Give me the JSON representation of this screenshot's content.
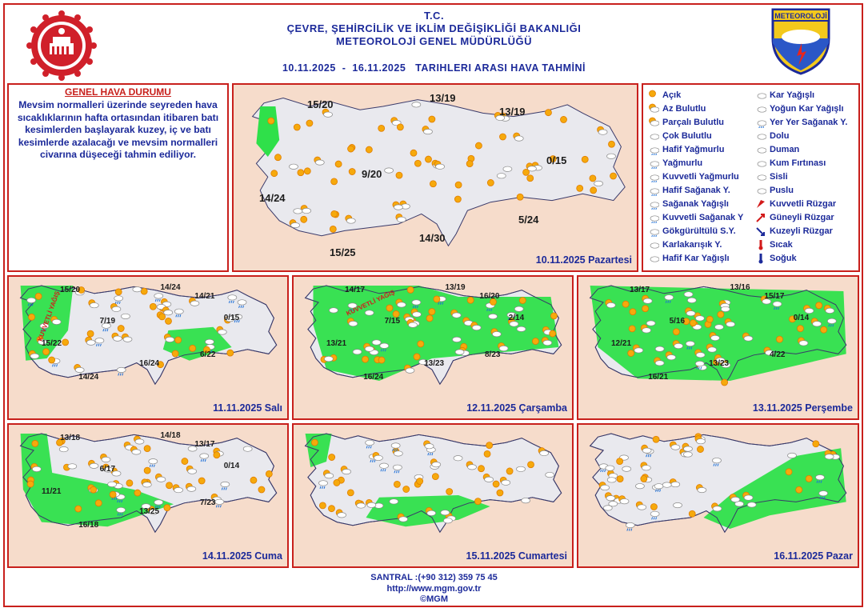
{
  "header": {
    "line1": "T.C.",
    "line2": "ÇEVRE, ŞEHİRCİLİK VE İKLİM DEĞİŞİKLİĞİ BAKANLIĞI",
    "line3": "METEOROLOJİ GENEL MÜDÜRLÜĞÜ",
    "range": "10.11.2025  -  16.11.2025   TARIHLERI ARASI HAVA TAHMİNİ",
    "logo_right_text": "METEOROLOJİ"
  },
  "general": {
    "title": "GENEL HAVA DURUMU",
    "text": "Mevsim normalleri üzerinde seyreden hava sıcaklıklarının hafta ortasından itibaren batı kesimlerden başlayarak kuzey, iç ve batı kesimlerde azalacağı ve mevsim normalleri civarına düşeceği tahmin ediliyor."
  },
  "legend": {
    "left": [
      {
        "icon": "sunny-icon",
        "label": "Açık"
      },
      {
        "icon": "few-clouds-icon",
        "label": "Az Bulutlu"
      },
      {
        "icon": "partly-cloudy-icon",
        "label": "Parçalı Bulutlu"
      },
      {
        "icon": "cloudy-icon",
        "label": "Çok Bulutlu"
      },
      {
        "icon": "light-rain-icon",
        "label": "Hafif Yağmurlu"
      },
      {
        "icon": "rain-icon",
        "label": "Yağmurlu"
      },
      {
        "icon": "heavy-rain-icon",
        "label": "Kuvvetli Yağmurlu"
      },
      {
        "icon": "light-shower-icon",
        "label": "Hafif Sağanak Y."
      },
      {
        "icon": "shower-icon",
        "label": "Sağanak Yağışlı"
      },
      {
        "icon": "heavy-shower-icon",
        "label": "Kuvvetli Sağanak Y"
      },
      {
        "icon": "thunderstorm-icon",
        "label": "Gökgürültülü S.Y."
      },
      {
        "icon": "sleet-icon",
        "label": "Karlakarışık Y."
      },
      {
        "icon": "light-snow-icon",
        "label": "Hafif Kar Yağışlı"
      }
    ],
    "right": [
      {
        "icon": "snow-icon",
        "label": "Kar Yağışlı"
      },
      {
        "icon": "heavy-snow-icon",
        "label": "Yoğun Kar Yağışlı"
      },
      {
        "icon": "local-shower-icon",
        "label": "Yer Yer Sağanak Y."
      },
      {
        "icon": "hail-icon",
        "label": "Dolu"
      },
      {
        "icon": "smoke-icon",
        "label": "Duman"
      },
      {
        "icon": "sandstorm-icon",
        "label": "Kum Fırtınası"
      },
      {
        "icon": "fog-icon",
        "label": "Sisli"
      },
      {
        "icon": "mist-icon",
        "label": "Puslu"
      },
      {
        "icon": "strong-wind-icon",
        "label": "Kuvvetli Rüzgar"
      },
      {
        "icon": "south-wind-icon",
        "label": "Güneyli Rüzgar"
      },
      {
        "icon": "north-wind-icon",
        "label": "Kuzeyli Rüzgar"
      },
      {
        "icon": "hot-icon",
        "label": "Sıcak"
      },
      {
        "icon": "cold-icon",
        "label": "Soğuk"
      }
    ]
  },
  "main_map": {
    "date": "10.11.2025 Pazartesi",
    "temps": [
      "15/20",
      "13/19",
      "13/19",
      "9/20",
      "0/15",
      "14/24",
      "5/24",
      "14/30",
      "15/25"
    ]
  },
  "days": [
    {
      "date": "11.11.2025 Salı",
      "temps": [
        "15/20",
        "14/24",
        "14/21",
        "7/19",
        "0/15",
        "15/22",
        "6/22",
        "16/24",
        "14/24"
      ],
      "warning": "KUVVETLİ YAĞIŞ"
    },
    {
      "date": "12.11.2025 Çarşamba",
      "temps": [
        "14/17",
        "13/19",
        "16/20",
        "7/15",
        "2/14",
        "13/21",
        "8/23",
        "13/23",
        "16/24"
      ],
      "warning": "KUVVETLİ YAĞIŞ"
    },
    {
      "date": "13.11.2025 Perşembe",
      "temps": [
        "13/17",
        "13/16",
        "15/17",
        "5/16",
        "0/14",
        "12/21",
        "4/22",
        "13/23",
        "16/21"
      ],
      "warning": ""
    },
    {
      "date": "14.11.2025 Cuma",
      "temps": [
        "13/18",
        "14/18",
        "13/17",
        "6/17",
        "0/14",
        "11/21",
        "7/23",
        "13/25",
        "16/18"
      ],
      "warning": ""
    },
    {
      "date": "15.11.2025 Cumartesi",
      "temps": [],
      "warning": ""
    },
    {
      "date": "16.11.2025 Pazar",
      "temps": [],
      "warning": ""
    }
  ],
  "footer": {
    "phone": "SANTRAL :(+90 312) 359 75 45",
    "url": "http://www.mgm.gov.tr",
    "copy": "©MGM"
  },
  "colors": {
    "red": "#c8201c",
    "blue": "#1c2a9a",
    "sea": "#f6dccb",
    "land": "#e9e9ee",
    "green": "#2fe04a"
  }
}
